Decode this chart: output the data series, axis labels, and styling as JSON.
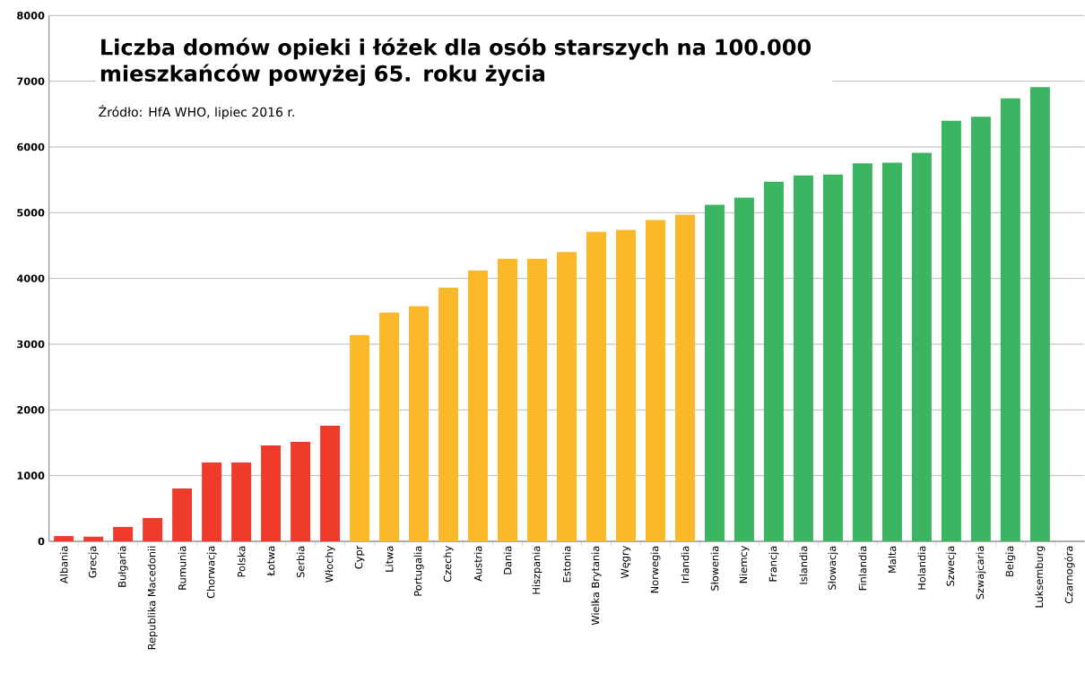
{
  "chart_data": {
    "type": "bar",
    "title": "Liczba domów opieki i łóżek dla osób starszych na 100.000 mieszkańców powyżej 65. roku życia",
    "annotations": [
      "Źródło: HfA WHO, lipiec 2016 r."
    ],
    "categories": [
      "Albania",
      "Grecja",
      "Bułgaria",
      "Republika Macedonii",
      "Rumunia",
      "Chorwacja",
      "Polska",
      "Łotwa",
      "Serbia",
      "Włochy",
      "Cypr",
      "Litwa",
      "Portugalia",
      "Czechy",
      "Austria",
      "Dania",
      "Hiszpania",
      "Estonia",
      "Wielka Brytania",
      "Węgry",
      "Norwegia",
      "Irlandia",
      "Słowenia",
      "Niemcy",
      "Francja",
      "Islandia",
      "Słowacja",
      "Finlandia",
      "Malta",
      "Holandia",
      "Szwecja",
      "Szwajcaria",
      "Belgia",
      "Luksemburg",
      "Czarnogóra"
    ],
    "values": [
      80,
      70,
      220,
      355,
      805,
      1200,
      1200,
      1460,
      1515,
      1760,
      3140,
      3480,
      3580,
      3860,
      4120,
      4300,
      4300,
      4400,
      4710,
      4740,
      4890,
      4970,
      5120,
      5230,
      5470,
      5570,
      5580,
      5750,
      5760,
      5910,
      6400,
      6460,
      6740,
      6910,
      null
    ],
    "colors": [
      "#ee3b2b",
      "#ee3b2b",
      "#ee3b2b",
      "#ee3b2b",
      "#ee3b2b",
      "#ee3b2b",
      "#ee3b2b",
      "#ee3b2b",
      "#ee3b2b",
      "#ee3b2b",
      "#fbb829",
      "#fbb829",
      "#fbb829",
      "#fbb829",
      "#fbb829",
      "#fbb829",
      "#fbb829",
      "#fbb829",
      "#fbb829",
      "#fbb829",
      "#fbb829",
      "#fbb829",
      "#3cb563",
      "#3cb563",
      "#3cb563",
      "#3cb563",
      "#3cb563",
      "#3cb563",
      "#3cb563",
      "#3cb563",
      "#3cb563",
      "#3cb563",
      "#3cb563",
      "#3cb563",
      "#3cb563"
    ],
    "ylim": [
      0,
      8000
    ],
    "yticks": [
      0,
      1000,
      2000,
      3000,
      4000,
      5000,
      6000,
      7000,
      8000
    ],
    "grid": "y"
  }
}
